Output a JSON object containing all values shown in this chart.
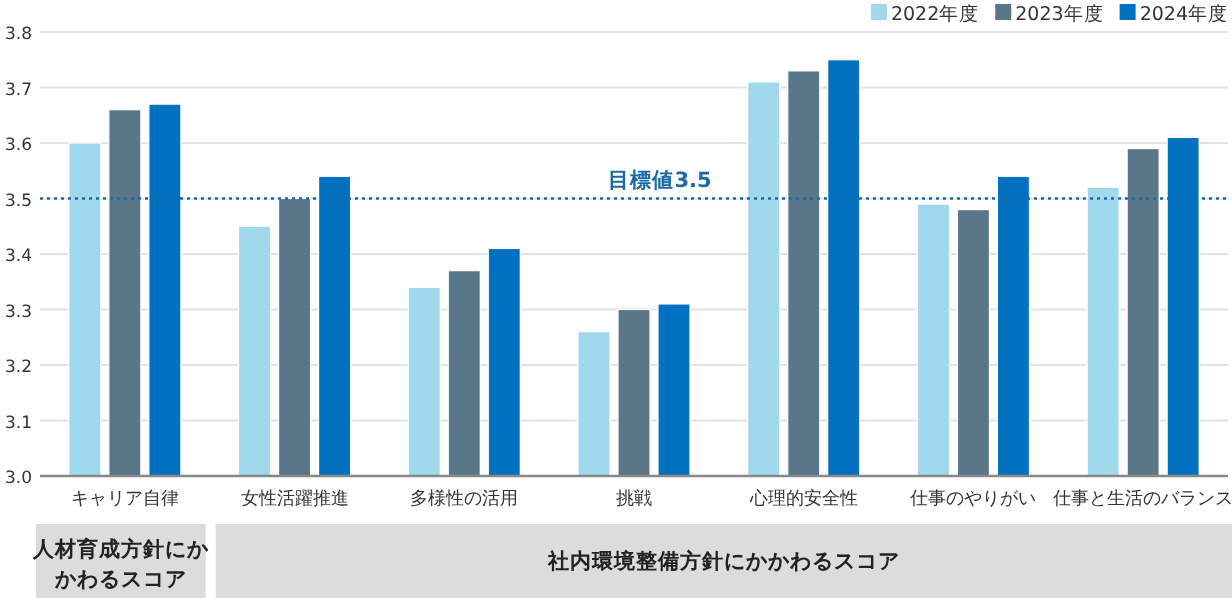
{
  "chart_data": {
    "type": "bar",
    "categories": [
      "キャリア自律",
      "女性活躍推進",
      "多様性の活用",
      "挑戦",
      "心理的安全性",
      "仕事のやりがい",
      "仕事と生活のバランス"
    ],
    "series": [
      {
        "name": "2022年度",
        "color": "#a0d8ec",
        "values": [
          3.6,
          3.45,
          3.34,
          3.26,
          3.71,
          3.49,
          3.52
        ]
      },
      {
        "name": "2023年度",
        "color": "#5a7689",
        "values": [
          3.66,
          3.5,
          3.37,
          3.3,
          3.73,
          3.48,
          3.59
        ]
      },
      {
        "name": "2024年度",
        "color": "#0070c0",
        "values": [
          3.67,
          3.54,
          3.41,
          3.31,
          3.75,
          3.54,
          3.61
        ]
      }
    ],
    "ylim": [
      3.0,
      3.8
    ],
    "yticks": [
      {
        "value": 3.0,
        "label": "3.0"
      },
      {
        "value": 3.1,
        "label": "3.1"
      },
      {
        "value": 3.2,
        "label": "3.2"
      },
      {
        "value": 3.3,
        "label": "3.3"
      },
      {
        "value": 3.4,
        "label": "3.4"
      },
      {
        "value": 3.5,
        "label": "3.5"
      },
      {
        "value": 3.6,
        "label": "3.6"
      },
      {
        "value": 3.7,
        "label": "3.7"
      },
      {
        "value": 3.8,
        "label": "3.8"
      }
    ],
    "grid": "y",
    "legend": "top right",
    "ref_lines": [
      {
        "axis": "y",
        "value": 3.5,
        "label": "目標値3.5",
        "color": "#1a6aa8",
        "line_style": "dotted"
      }
    ],
    "annotations": [
      "人材育成方針にかかわるスコア",
      "社内環境整備方針にかかわるスコア"
    ]
  }
}
